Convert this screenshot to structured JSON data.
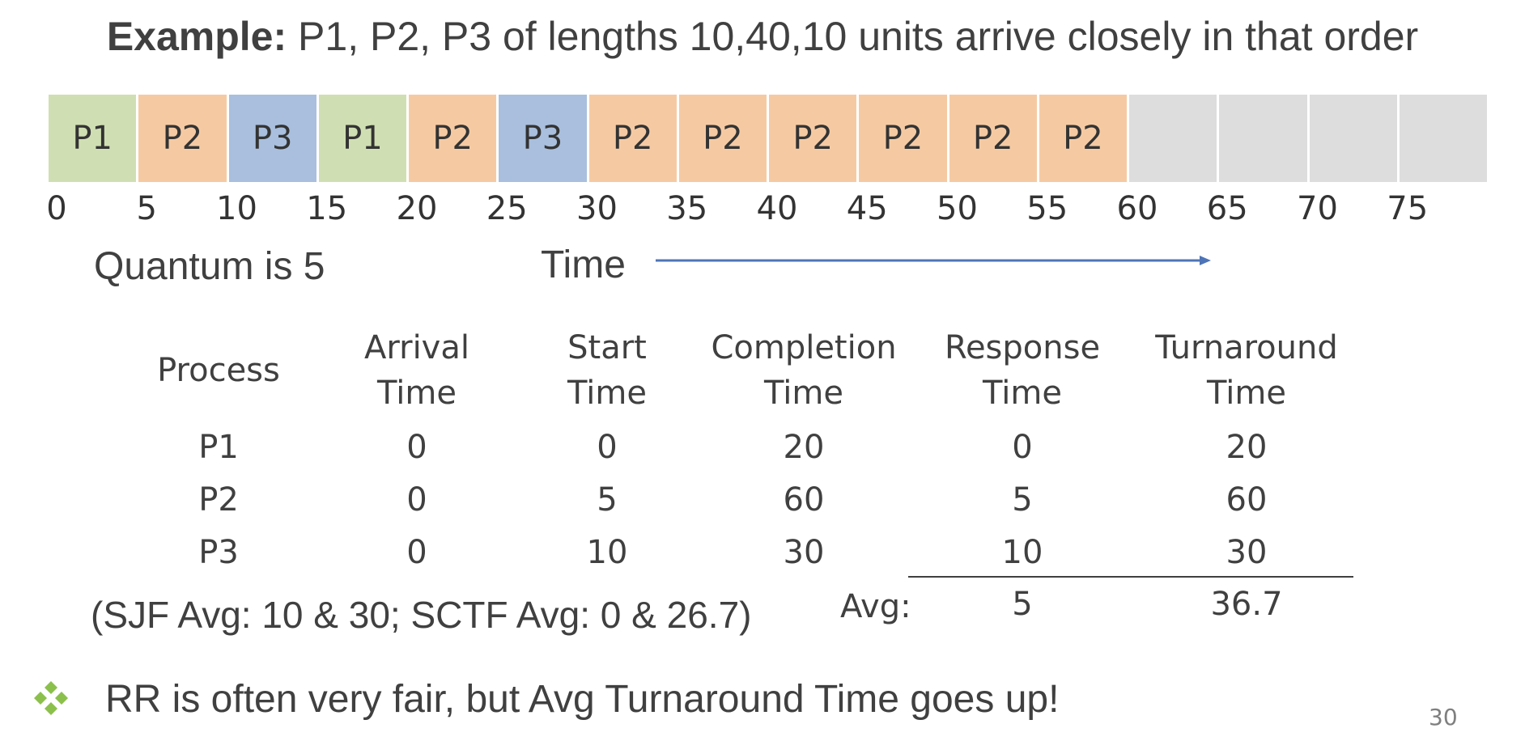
{
  "title": {
    "bold": "Example:",
    "rest": " P1, P2, P3 of lengths 10,40,10 units arrive closely in that order"
  },
  "colors": {
    "P1": "#d0dfb3",
    "P2": "#f5caa3",
    "P3": "#a9bfdd",
    "idle": "#dddddd",
    "arrow": "#4e74b8",
    "bullet": "#8cc04c"
  },
  "gantt": {
    "cells": [
      "P1",
      "P2",
      "P3",
      "P1",
      "P2",
      "P3",
      "P2",
      "P2",
      "P2",
      "P2",
      "P2",
      "P2",
      "",
      "",
      "",
      ""
    ],
    "ticks": [
      "0",
      "5",
      "10",
      "15",
      "20",
      "25",
      "30",
      "35",
      "40",
      "45",
      "50",
      "55",
      "60",
      "65",
      "70",
      "75"
    ]
  },
  "quantum_label": "Quantum is 5",
  "time_label": "Time",
  "table": {
    "headers": [
      [
        "Process"
      ],
      [
        "Arrival",
        "Time"
      ],
      [
        "Start",
        "Time"
      ],
      [
        "Completion",
        "Time"
      ],
      [
        "Response",
        "Time"
      ],
      [
        "Turnaround",
        "Time"
      ]
    ],
    "rows": [
      [
        "P1",
        "0",
        "0",
        "20",
        "0",
        "20"
      ],
      [
        "P2",
        "0",
        "5",
        "60",
        "5",
        "60"
      ],
      [
        "P3",
        "0",
        "10",
        "30",
        "10",
        "30"
      ]
    ],
    "avg_label": "Avg:",
    "avg_response": "5",
    "avg_turnaround": "36.7"
  },
  "sjf_note": "(SJF Avg: 10 & 30; SCTF Avg: 0 & 26.7)",
  "bullet": "RR is often very fair, but Avg Turnaround Time goes up!",
  "page_number": "30"
}
